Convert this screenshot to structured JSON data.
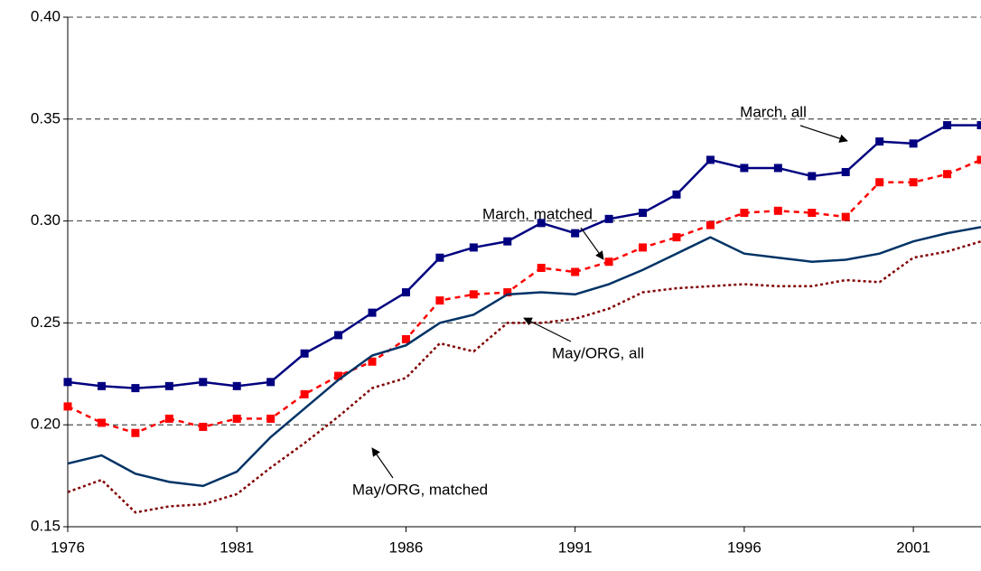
{
  "chart_data": {
    "type": "line",
    "x": [
      1976,
      1977,
      1978,
      1979,
      1980,
      1981,
      1982,
      1983,
      1984,
      1985,
      1986,
      1987,
      1988,
      1989,
      1990,
      1991,
      1992,
      1993,
      1994,
      1995,
      1996,
      1997,
      1998,
      1999,
      2000,
      2001,
      2002,
      2003
    ],
    "series": [
      {
        "name": "March, all",
        "color": "#000080",
        "line_style": "solid",
        "marker": "square",
        "values": [
          0.221,
          0.219,
          0.218,
          0.219,
          0.221,
          0.219,
          0.221,
          0.235,
          0.244,
          0.255,
          0.265,
          0.282,
          0.287,
          0.29,
          0.299,
          0.294,
          0.301,
          0.304,
          0.313,
          0.33,
          0.326,
          0.326,
          0.322,
          0.324,
          0.339,
          0.338,
          0.347,
          0.347
        ]
      },
      {
        "name": "March, matched",
        "color": "#ff0000",
        "line_style": "dashed",
        "marker": "square",
        "values": [
          0.209,
          0.201,
          0.196,
          0.203,
          0.199,
          0.203,
          0.203,
          0.215,
          0.224,
          0.231,
          0.242,
          0.261,
          0.264,
          0.265,
          0.277,
          0.275,
          0.28,
          0.287,
          0.292,
          0.298,
          0.304,
          0.305,
          0.304,
          0.302,
          0.319,
          0.319,
          0.323,
          0.33
        ]
      },
      {
        "name": "May/ORG, all",
        "color": "#003366",
        "line_style": "solid",
        "marker": "none",
        "values": [
          0.181,
          0.185,
          0.176,
          0.172,
          0.17,
          0.177,
          0.194,
          0.208,
          0.222,
          0.234,
          0.239,
          0.25,
          0.254,
          0.264,
          0.265,
          0.264,
          0.269,
          0.276,
          0.284,
          0.292,
          0.284,
          0.282,
          0.28,
          0.281,
          0.284,
          0.29,
          0.294,
          0.297
        ]
      },
      {
        "name": "May/ORG, matched",
        "color": "#800000",
        "line_style": "dotted",
        "marker": "none",
        "values": [
          0.167,
          0.173,
          0.157,
          0.16,
          0.161,
          0.166,
          0.179,
          0.191,
          0.204,
          0.218,
          0.223,
          0.24,
          0.236,
          0.25,
          0.25,
          0.252,
          0.257,
          0.265,
          0.267,
          0.268,
          0.269,
          0.268,
          0.268,
          0.271,
          0.27,
          0.282,
          0.285,
          0.29
        ]
      }
    ],
    "xlim": [
      1976,
      2003
    ],
    "xticks": [
      1976,
      1981,
      1986,
      1991,
      1996,
      2001
    ],
    "ylim": [
      0.15,
      0.4
    ],
    "yticks": [
      {
        "value": 0.15,
        "label": "0.15"
      },
      {
        "value": 0.2,
        "label": "0.20"
      },
      {
        "value": 0.25,
        "label": "0.25"
      },
      {
        "value": 0.3,
        "label": "0.30"
      },
      {
        "value": 0.35,
        "label": "0.35"
      },
      {
        "value": 0.4,
        "label": "0.40"
      }
    ],
    "grid": true,
    "annotations": [
      "March, all",
      "March, matched",
      "May/ORG, all",
      "May/ORG, matched"
    ]
  }
}
